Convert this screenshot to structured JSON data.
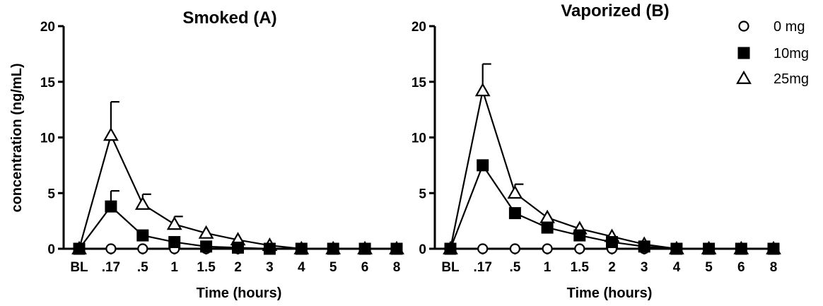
{
  "chart_data": [
    {
      "type": "line",
      "title": "Smoked (A)",
      "xlabel": "Time (hours)",
      "ylabel": "concentration (ng/mL)",
      "categories": [
        "BL",
        ".17",
        ".5",
        "1",
        "1.5",
        "2",
        "3",
        "4",
        "5",
        "6",
        "8"
      ],
      "ylim": [
        0,
        20
      ],
      "yticks": [
        "0",
        "5",
        "10",
        "15",
        "20"
      ],
      "series": [
        {
          "name": "0 mg",
          "marker": "circle",
          "values": [
            0,
            0,
            0,
            0,
            0,
            0,
            0,
            0,
            0,
            0,
            0
          ],
          "errors": [
            0,
            0,
            0,
            0,
            0,
            0,
            0,
            0,
            0,
            0,
            0
          ]
        },
        {
          "name": "10mg",
          "marker": "square",
          "values": [
            0,
            3.8,
            1.2,
            0.6,
            0.2,
            0.1,
            0,
            0,
            0,
            0,
            0
          ],
          "errors": [
            0,
            1.4,
            0,
            0,
            0,
            0,
            0,
            0,
            0,
            0,
            0
          ]
        },
        {
          "name": "25mg",
          "marker": "triangle",
          "values": [
            0,
            10.2,
            4.0,
            2.2,
            1.4,
            0.8,
            0.3,
            0,
            0,
            0,
            0
          ],
          "errors": [
            0,
            3.0,
            0.9,
            0.7,
            0,
            0,
            0,
            0,
            0,
            0,
            0
          ]
        }
      ]
    },
    {
      "type": "line",
      "title": "Vaporized (B)",
      "xlabel": "Time (hours)",
      "ylabel": "",
      "categories": [
        "BL",
        ".17",
        ".5",
        "1",
        "1.5",
        "2",
        "3",
        "4",
        "5",
        "6",
        "8"
      ],
      "ylim": [
        0,
        20
      ],
      "yticks": [
        "0",
        "5",
        "10",
        "15",
        "20"
      ],
      "series": [
        {
          "name": "0 mg",
          "marker": "circle",
          "values": [
            0,
            0,
            0,
            0,
            0,
            0,
            0,
            0,
            0,
            0,
            0
          ],
          "errors": [
            0,
            0,
            0,
            0,
            0,
            0,
            0,
            0,
            0,
            0,
            0
          ]
        },
        {
          "name": "10mg",
          "marker": "square",
          "values": [
            0,
            7.5,
            3.2,
            1.9,
            1.2,
            0.6,
            0.2,
            0,
            0,
            0,
            0
          ],
          "errors": [
            0,
            0,
            0,
            0,
            0,
            0,
            0,
            0,
            0,
            0,
            0
          ]
        },
        {
          "name": "25mg",
          "marker": "triangle",
          "values": [
            0,
            14.2,
            5.0,
            2.8,
            1.8,
            1.1,
            0.4,
            0,
            0,
            0,
            0
          ],
          "errors": [
            0,
            2.4,
            0.8,
            0,
            0,
            0,
            0,
            0,
            0,
            0,
            0
          ]
        }
      ],
      "legend": {
        "position": "top-right",
        "entries": [
          {
            "label": "0 mg",
            "marker": "circle"
          },
          {
            "label": "10mg",
            "marker": "square"
          },
          {
            "label": "25mg",
            "marker": "triangle"
          }
        ]
      }
    }
  ]
}
